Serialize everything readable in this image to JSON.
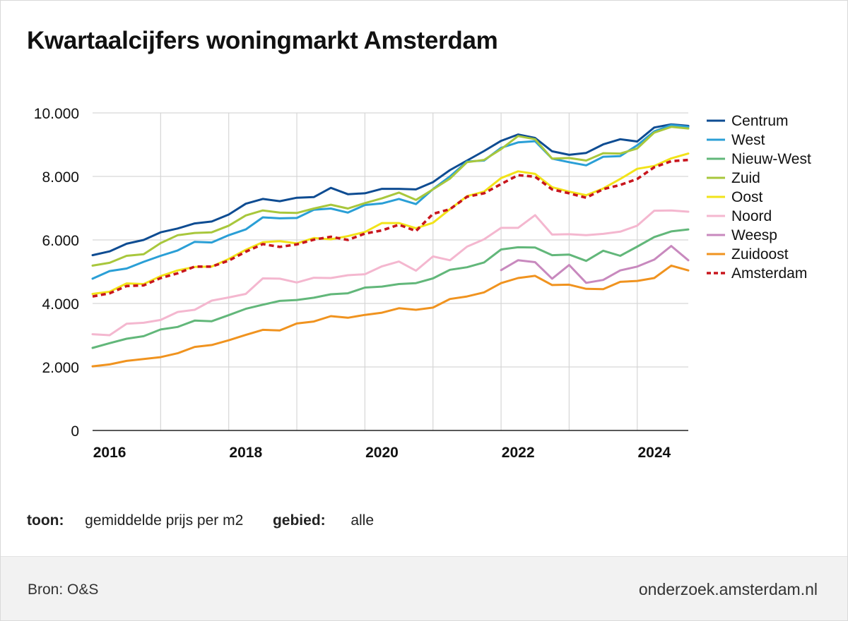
{
  "header": {
    "title": "Kwartaalcijfers woningmarkt Amsterdam"
  },
  "controls": {
    "show_label": "toon:",
    "show_value": "gemiddelde prijs per m2",
    "area_label": "gebied:",
    "area_value": "alle"
  },
  "footer": {
    "source": "Bron: O&S",
    "site": "onderzoek.amsterdam.nl"
  },
  "chart_data": {
    "type": "line",
    "title": "Kwartaalcijfers woningmarkt Amsterdam",
    "xlabel": "",
    "ylabel": "",
    "ylim": [
      0,
      10000
    ],
    "yticks": [
      0,
      2000,
      4000,
      6000,
      8000,
      10000
    ],
    "ytick_labels": [
      "0",
      "2.000",
      "4.000",
      "6.000",
      "8.000",
      "10.000"
    ],
    "xlim": [
      0,
      35
    ],
    "x_label_positions": [
      1,
      9,
      17,
      25,
      33
    ],
    "x_tick_labels": [
      "2016",
      "2018",
      "2020",
      "2022",
      "2024"
    ],
    "x_grid_positions": [
      4,
      8,
      12,
      16,
      20,
      24,
      28,
      32
    ],
    "quarters_start": "2016 Q1",
    "grid": true,
    "legend_position": "right",
    "series": [
      {
        "name": "Centrum",
        "color": "#0e4c92",
        "dashed": false,
        "values": [
          5520,
          5640,
          5880,
          6000,
          6240,
          6360,
          6520,
          6580,
          6800,
          7140,
          7290,
          7220,
          7330,
          7350,
          7640,
          7440,
          7470,
          7610,
          7610,
          7590,
          7820,
          8200,
          8500,
          8800,
          9120,
          9320,
          9210,
          8790,
          8680,
          8740,
          9010,
          9170,
          9100,
          9540,
          9640,
          9590
        ]
      },
      {
        "name": "West",
        "color": "#2a9fd6",
        "dashed": false,
        "values": [
          4780,
          5020,
          5100,
          5310,
          5500,
          5670,
          5940,
          5920,
          6150,
          6330,
          6710,
          6680,
          6690,
          6950,
          6990,
          6860,
          7100,
          7150,
          7290,
          7130,
          7600,
          8000,
          8470,
          8500,
          8900,
          9070,
          9110,
          8560,
          8450,
          8350,
          8620,
          8640,
          8980,
          9420,
          9620,
          9560
        ]
      },
      {
        "name": "Nieuw-West",
        "color": "#62b77a",
        "dashed": false,
        "values": [
          2600,
          2750,
          2890,
          2970,
          3180,
          3260,
          3460,
          3440,
          3630,
          3830,
          3960,
          4080,
          4110,
          4180,
          4290,
          4320,
          4500,
          4530,
          4610,
          4640,
          4790,
          5060,
          5140,
          5290,
          5700,
          5770,
          5760,
          5520,
          5540,
          5340,
          5660,
          5500,
          5790,
          6090,
          6270,
          6330
        ]
      },
      {
        "name": "Zuid",
        "color": "#a8c73c",
        "dashed": false,
        "values": [
          5190,
          5280,
          5500,
          5550,
          5900,
          6150,
          6220,
          6240,
          6450,
          6770,
          6930,
          6860,
          6850,
          6990,
          7110,
          6990,
          7160,
          7310,
          7490,
          7260,
          7590,
          7930,
          8450,
          8520,
          8860,
          9270,
          9170,
          8560,
          8580,
          8500,
          8730,
          8720,
          8880,
          9380,
          9560,
          9510
        ]
      },
      {
        "name": "Oost",
        "color": "#f2e319",
        "dashed": false,
        "values": [
          4300,
          4370,
          4630,
          4610,
          4860,
          5040,
          5150,
          5160,
          5400,
          5690,
          5930,
          5960,
          5890,
          6060,
          6020,
          6120,
          6250,
          6530,
          6530,
          6370,
          6540,
          6970,
          7380,
          7520,
          7950,
          8160,
          8080,
          7660,
          7520,
          7410,
          7620,
          7920,
          8240,
          8330,
          8570,
          8720
        ]
      },
      {
        "name": "Noord",
        "color": "#f4b7cf",
        "dashed": false,
        "values": [
          3030,
          3000,
          3360,
          3390,
          3480,
          3730,
          3800,
          4090,
          4190,
          4300,
          4790,
          4780,
          4660,
          4810,
          4800,
          4890,
          4920,
          5170,
          5320,
          5030,
          5480,
          5360,
          5790,
          6020,
          6380,
          6380,
          6780,
          6170,
          6180,
          6150,
          6190,
          6260,
          6450,
          6920,
          6930,
          6890
        ]
      },
      {
        "name": "Weesp",
        "color": "#c889be",
        "dashed": false,
        "values": [
          null,
          null,
          null,
          null,
          null,
          null,
          null,
          null,
          null,
          null,
          null,
          null,
          null,
          null,
          null,
          null,
          null,
          null,
          null,
          null,
          null,
          null,
          null,
          null,
          5050,
          5360,
          5300,
          4780,
          5210,
          4650,
          4740,
          5040,
          5160,
          5380,
          5810,
          5360
        ]
      },
      {
        "name": "Zuidoost",
        "color": "#f0931f",
        "dashed": false,
        "values": [
          2020,
          2080,
          2190,
          2250,
          2310,
          2430,
          2630,
          2690,
          2840,
          3010,
          3170,
          3150,
          3370,
          3430,
          3600,
          3550,
          3640,
          3710,
          3850,
          3800,
          3870,
          4140,
          4220,
          4350,
          4640,
          4800,
          4870,
          4580,
          4590,
          4460,
          4450,
          4680,
          4710,
          4800,
          5190,
          5040
        ]
      },
      {
        "name": "Amsterdam",
        "color": "#c8161d",
        "dashed": true,
        "values": [
          4220,
          4320,
          4550,
          4570,
          4800,
          4950,
          5160,
          5160,
          5350,
          5630,
          5870,
          5780,
          5860,
          6010,
          6100,
          6000,
          6200,
          6300,
          6480,
          6280,
          6820,
          6970,
          7360,
          7470,
          7760,
          8040,
          7990,
          7590,
          7470,
          7330,
          7600,
          7730,
          7920,
          8290,
          8480,
          8520
        ]
      }
    ]
  }
}
